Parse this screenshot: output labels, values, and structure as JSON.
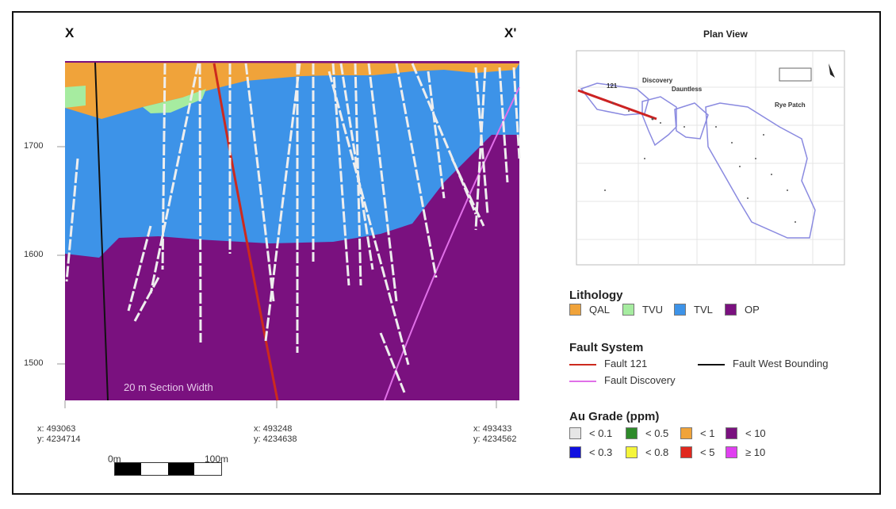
{
  "section": {
    "left_label": "X",
    "right_label": "X'",
    "elevations": [
      "1700",
      "1600",
      "1500"
    ],
    "width_note": "20 m Section Width",
    "coords": [
      {
        "x": "x: 493063",
        "y": "y: 4234714"
      },
      {
        "x": "x: 493248",
        "y": "y: 4234638"
      },
      {
        "x": "x: 493433",
        "y": "y: 4234562"
      }
    ],
    "scale": {
      "start": "0m",
      "end": "100m"
    }
  },
  "plan_view": {
    "title": "Plan View",
    "labels": [
      "121",
      "Discovery",
      "Dauntless",
      "Rye Patch"
    ],
    "colors": {
      "outline": "#8a8ae0",
      "section_line": "#cc2222"
    }
  },
  "legend": {
    "lithology": {
      "title": "Lithology",
      "items": [
        {
          "label": "QAL",
          "color": "#f0a33a"
        },
        {
          "label": "TVU",
          "color": "#a6eca0"
        },
        {
          "label": "TVL",
          "color": "#3d93e8"
        },
        {
          "label": "OP",
          "color": "#7a117f"
        }
      ]
    },
    "faults": {
      "title": "Fault System",
      "items": [
        {
          "label": "Fault 121",
          "color": "#cc2a1e"
        },
        {
          "label": "Fault West Bounding",
          "color": "#111111"
        },
        {
          "label": "Fault Discovery",
          "color": "#e070e8"
        }
      ]
    },
    "au_grade": {
      "title": "Au Grade (ppm)",
      "items": [
        {
          "label": "< 0.1",
          "color": "#e6e6e6"
        },
        {
          "label": "< 0.5",
          "color": "#2e8a2a"
        },
        {
          "label": "< 1",
          "color": "#f0a33a"
        },
        {
          "label": "< 10",
          "color": "#7a117f"
        },
        {
          "label": "< 0.3",
          "color": "#1010e0"
        },
        {
          "label": "< 0.8",
          "color": "#f5f53a"
        },
        {
          "label": "< 5",
          "color": "#e0281e"
        },
        {
          "label": "≥ 10",
          "color": "#e040f0"
        }
      ]
    }
  }
}
